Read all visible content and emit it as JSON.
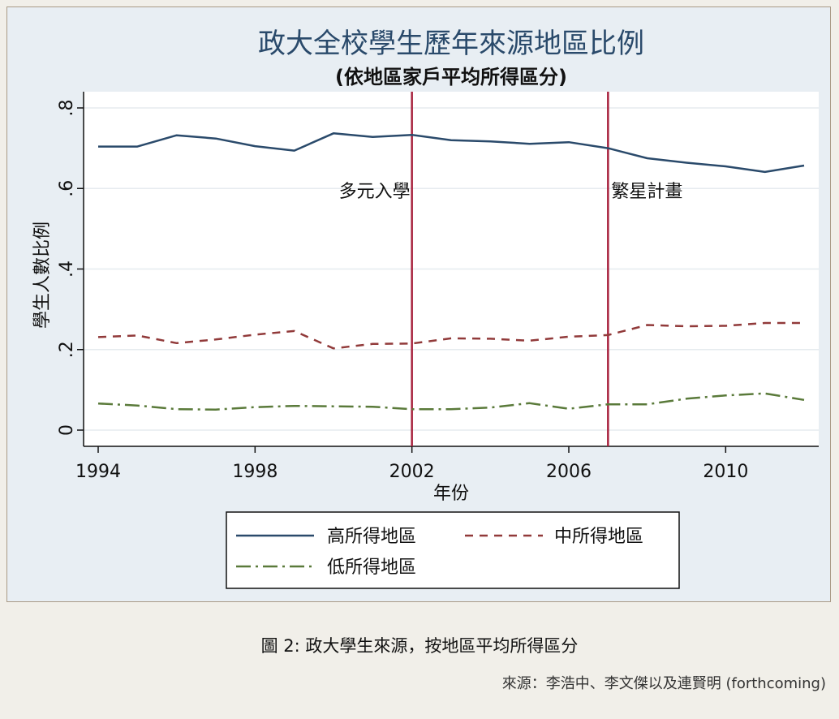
{
  "figure": {
    "caption": "圖 2: 政大學生來源，按地區平均所得區分",
    "source": "來源：李浩中、李文傑以及連賢明 (forthcoming)"
  },
  "colors": {
    "high": "#2a4a6b",
    "mid": "#913a3a",
    "low": "#5a7a3a",
    "vline": "#a8233f",
    "plot_bg": "#ffffff",
    "outer_bg": "#e8eef3"
  },
  "chart_data": {
    "type": "line",
    "title": "政大全校學生歷年來源地區比例",
    "subtitle": "(依地區家戶平均所得區分)",
    "xlabel": "年份",
    "ylabel": "學生人數比例",
    "xlim": [
      1994,
      2012
    ],
    "ylim": [
      0,
      0.8
    ],
    "xticks": [
      1994,
      1998,
      2002,
      2006,
      2010
    ],
    "xtick_labels": [
      "1994",
      "1998",
      "2002",
      "2006",
      "2010"
    ],
    "yticks": [
      0,
      0.2,
      0.4,
      0.6,
      0.8
    ],
    "ytick_labels": [
      "0",
      ".2",
      ".4",
      ".6",
      ".8"
    ],
    "grid": true,
    "legend_position": "bottom",
    "x": [
      1994,
      1995,
      1996,
      1997,
      1998,
      1999,
      2000,
      2001,
      2002,
      2003,
      2004,
      2005,
      2006,
      2007,
      2008,
      2009,
      2010,
      2011,
      2012
    ],
    "series": [
      {
        "name": "高所得地區",
        "key": "high",
        "style": "solid",
        "values": [
          0.704,
          0.704,
          0.732,
          0.724,
          0.705,
          0.694,
          0.737,
          0.728,
          0.733,
          0.72,
          0.717,
          0.711,
          0.715,
          0.7,
          0.675,
          0.664,
          0.655,
          0.641,
          0.657
        ]
      },
      {
        "name": "中所得地區",
        "key": "mid",
        "style": "dash",
        "values": [
          0.231,
          0.235,
          0.216,
          0.225,
          0.237,
          0.246,
          0.203,
          0.214,
          0.215,
          0.228,
          0.227,
          0.222,
          0.232,
          0.236,
          0.261,
          0.258,
          0.259,
          0.266,
          0.266
        ]
      },
      {
        "name": "低所得地區",
        "key": "low",
        "style": "dashdot",
        "values": [
          0.066,
          0.061,
          0.052,
          0.051,
          0.057,
          0.06,
          0.059,
          0.058,
          0.052,
          0.052,
          0.056,
          0.067,
          0.053,
          0.064,
          0.064,
          0.078,
          0.086,
          0.091,
          0.075
        ]
      }
    ],
    "vlines": [
      {
        "x": 2002,
        "label": "多元入學"
      },
      {
        "x": 2007,
        "label": "繁星計畫"
      }
    ]
  }
}
